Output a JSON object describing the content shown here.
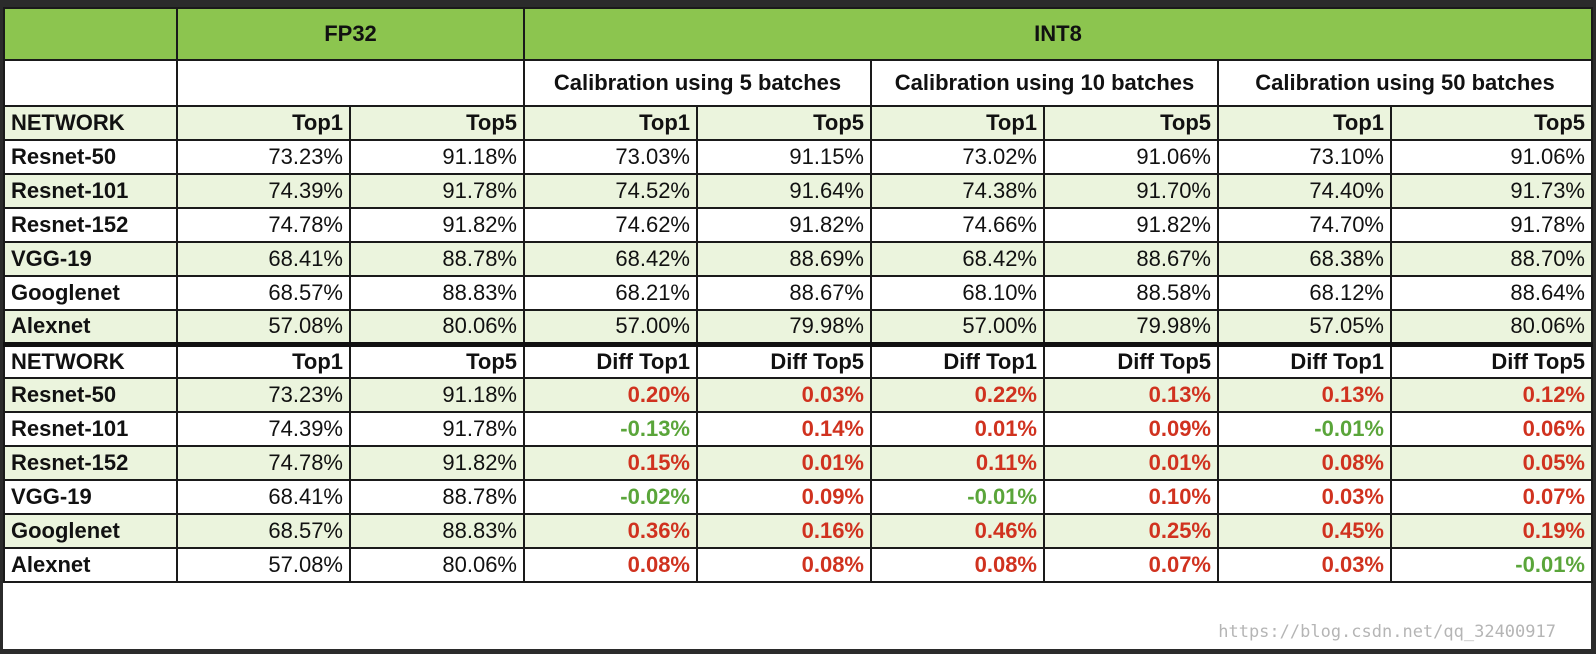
{
  "header": {
    "fp32": "FP32",
    "int8": "INT8",
    "calibrations": [
      "Calibration using 5 batches",
      "Calibration using 10 batches",
      "Calibration using 50 batches"
    ]
  },
  "table1": {
    "columns": [
      "NETWORK",
      "Top1",
      "Top5",
      "Top1",
      "Top5",
      "Top1",
      "Top5",
      "Top1",
      "Top5"
    ],
    "rows": [
      {
        "network": "Resnet-50",
        "values": [
          "73.23%",
          "91.18%",
          "73.03%",
          "91.15%",
          "73.02%",
          "91.06%",
          "73.10%",
          "91.06%"
        ]
      },
      {
        "network": "Resnet-101",
        "values": [
          "74.39%",
          "91.78%",
          "74.52%",
          "91.64%",
          "74.38%",
          "91.70%",
          "74.40%",
          "91.73%"
        ]
      },
      {
        "network": "Resnet-152",
        "values": [
          "74.78%",
          "91.82%",
          "74.62%",
          "91.82%",
          "74.66%",
          "91.82%",
          "74.70%",
          "91.78%"
        ]
      },
      {
        "network": "VGG-19",
        "values": [
          "68.41%",
          "88.78%",
          "68.42%",
          "88.69%",
          "68.42%",
          "88.67%",
          "68.38%",
          "88.70%"
        ]
      },
      {
        "network": "Googlenet",
        "values": [
          "68.57%",
          "88.83%",
          "68.21%",
          "88.67%",
          "68.10%",
          "88.58%",
          "68.12%",
          "88.64%"
        ]
      },
      {
        "network": "Alexnet",
        "values": [
          "57.08%",
          "80.06%",
          "57.00%",
          "79.98%",
          "57.00%",
          "79.98%",
          "57.05%",
          "80.06%"
        ]
      }
    ]
  },
  "table2": {
    "columns": [
      "NETWORK",
      "Top1",
      "Top5",
      "Diff Top1",
      "Diff Top5",
      "Diff Top1",
      "Diff Top5",
      "Diff Top1",
      "Diff Top5"
    ],
    "rows": [
      {
        "network": "Resnet-50",
        "values": [
          "73.23%",
          "91.18%",
          "0.20%",
          "0.03%",
          "0.22%",
          "0.13%",
          "0.13%",
          "0.12%"
        ]
      },
      {
        "network": "Resnet-101",
        "values": [
          "74.39%",
          "91.78%",
          "-0.13%",
          "0.14%",
          "0.01%",
          "0.09%",
          "-0.01%",
          "0.06%"
        ]
      },
      {
        "network": "Resnet-152",
        "values": [
          "74.78%",
          "91.82%",
          "0.15%",
          "0.01%",
          "0.11%",
          "0.01%",
          "0.08%",
          "0.05%"
        ]
      },
      {
        "network": "VGG-19",
        "values": [
          "68.41%",
          "88.78%",
          "-0.02%",
          "0.09%",
          "-0.01%",
          "0.10%",
          "0.03%",
          "0.07%"
        ]
      },
      {
        "network": "Googlenet",
        "values": [
          "68.57%",
          "88.83%",
          "0.36%",
          "0.16%",
          "0.46%",
          "0.25%",
          "0.45%",
          "0.19%"
        ]
      },
      {
        "network": "Alexnet",
        "values": [
          "57.08%",
          "80.06%",
          "0.08%",
          "0.08%",
          "0.08%",
          "0.07%",
          "0.03%",
          "-0.01%"
        ]
      }
    ]
  },
  "colors": {
    "header_green": "#8cc54f",
    "row_shade": "#ebf4dd",
    "positive_diff": "#d0321f",
    "negative_diff": "#5aa53a"
  },
  "watermark": "https://blog.csdn.net/qq_32400917"
}
